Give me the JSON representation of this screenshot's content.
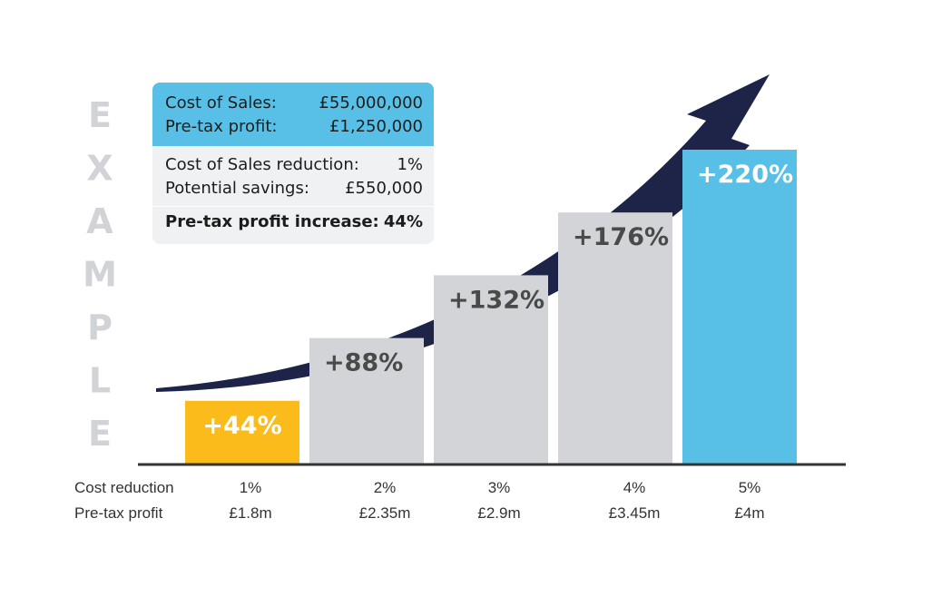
{
  "watermark": {
    "letters": [
      "E",
      "X",
      "A",
      "M",
      "P",
      "L",
      "E"
    ]
  },
  "info_card": {
    "header": [
      {
        "label": "Cost of Sales:",
        "value": "£55,000,000"
      },
      {
        "label": "Pre-tax profit:",
        "value": "£1,250,000"
      }
    ],
    "body": [
      {
        "label": "Cost of Sales reduction:",
        "value": "1%"
      },
      {
        "label": "Potential savings:",
        "value": "£550,000"
      }
    ],
    "footer": {
      "label": "Pre-tax profit increase:",
      "value": "44%"
    }
  },
  "row_labels": {
    "cost_reduction": "Cost reduction",
    "pretax_profit": "Pre-tax profit"
  },
  "colors": {
    "highlight": "#fbbb1b",
    "neutral": "#d2d4d7",
    "accent": "#58c0e6",
    "arrow": "#1e2448",
    "baseline": "#333333"
  },
  "chart_data": {
    "type": "bar",
    "title": "",
    "categories": [
      "1%",
      "2%",
      "3%",
      "4%",
      "5%"
    ],
    "pretax_profit_labels": [
      "£1.8m",
      "£2.35m",
      "£2.9m",
      "£3.45m",
      "£4m"
    ],
    "values": [
      44,
      88,
      132,
      176,
      220
    ],
    "data_labels": [
      "+44%",
      "+88%",
      "+132%",
      "+176%",
      "+220%"
    ],
    "bar_colors": [
      "highlight",
      "neutral",
      "neutral",
      "neutral",
      "accent"
    ],
    "xlabel": "Cost reduction",
    "ylabel": "",
    "ylim": [
      0,
      240
    ],
    "grid": false
  }
}
